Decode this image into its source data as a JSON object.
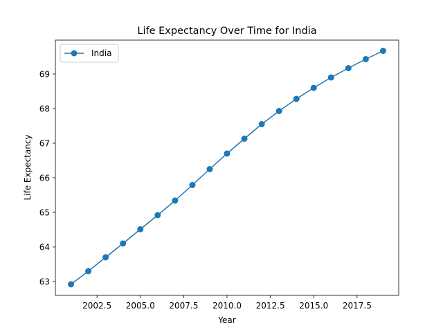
{
  "chart_data": {
    "type": "line",
    "title": "Life Expectancy Over Time for India",
    "xlabel": "Year",
    "ylabel": "Life Expectancy",
    "xlim": [
      2000.1,
      2019.9
    ],
    "ylim": [
      62.6,
      69.98
    ],
    "xticks": [
      2002.5,
      2005.0,
      2007.5,
      2010.0,
      2012.5,
      2015.0,
      2017.5
    ],
    "xtick_labels": [
      "2002.5",
      "2005.0",
      "2007.5",
      "2010.0",
      "2012.5",
      "2015.0",
      "2017.5"
    ],
    "yticks": [
      63,
      64,
      65,
      66,
      67,
      68,
      69
    ],
    "ytick_labels": [
      "63",
      "64",
      "65",
      "66",
      "67",
      "68",
      "69"
    ],
    "grid": false,
    "legend_position": "top-left",
    "series": [
      {
        "name": "India",
        "color": "#1f77b4",
        "marker": "circle",
        "x": [
          2001,
          2002,
          2003,
          2004,
          2005,
          2006,
          2007,
          2008,
          2009,
          2010,
          2011,
          2012,
          2013,
          2014,
          2015,
          2016,
          2017,
          2018,
          2019
        ],
        "y": [
          62.92,
          63.3,
          63.7,
          64.1,
          64.51,
          64.92,
          65.34,
          65.79,
          66.25,
          66.7,
          67.13,
          67.55,
          67.93,
          68.28,
          68.6,
          68.9,
          69.17,
          69.43,
          69.67
        ]
      }
    ]
  }
}
